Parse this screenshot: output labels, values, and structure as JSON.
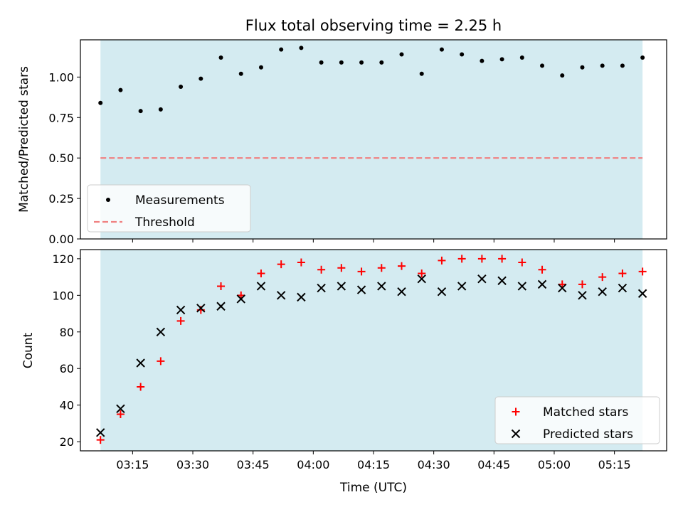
{
  "chart_data": [
    {
      "type": "scatter",
      "title": "Flux total observing time = 2.25 h",
      "xlabel": "",
      "ylabel": "Matched/Predicted stars",
      "x_axis_type": "time",
      "xlim": [
        "03:02",
        "05:28"
      ],
      "ylim": [
        0,
        1.23
      ],
      "yticks": [
        "0.00",
        "0.25",
        "0.50",
        "0.75",
        "1.00"
      ],
      "observing_window": [
        "03:07",
        "05:22"
      ],
      "observing_window_color": "#d4ebf1",
      "legend_position": "lower-left",
      "series": [
        {
          "name": "Measurements",
          "marker": "dot",
          "color": "#000000",
          "x": [
            "03:07",
            "03:12",
            "03:17",
            "03:22",
            "03:27",
            "03:32",
            "03:37",
            "03:42",
            "03:47",
            "03:52",
            "03:57",
            "04:02",
            "04:07",
            "04:12",
            "04:17",
            "04:22",
            "04:27",
            "04:32",
            "04:37",
            "04:42",
            "04:47",
            "04:52",
            "04:57",
            "05:02",
            "05:07",
            "05:12",
            "05:17",
            "05:22"
          ],
          "y": [
            0.84,
            0.92,
            0.79,
            0.8,
            0.94,
            0.99,
            1.12,
            1.02,
            1.06,
            1.17,
            1.18,
            1.09,
            1.09,
            1.09,
            1.09,
            1.14,
            1.02,
            1.17,
            1.14,
            1.1,
            1.11,
            1.12,
            1.07,
            1.01,
            1.06,
            1.07,
            1.07,
            1.12
          ]
        },
        {
          "name": "Threshold",
          "marker": "dashed-line",
          "color": "#f08080",
          "x": [
            "03:07",
            "05:22"
          ],
          "y": [
            0.5,
            0.5
          ]
        }
      ]
    },
    {
      "type": "scatter",
      "title": "",
      "xlabel": "Time (UTC)",
      "ylabel": "Count",
      "x_axis_type": "time",
      "xlim": [
        "03:02",
        "05:28"
      ],
      "xticks": [
        "03:15",
        "03:30",
        "03:45",
        "04:00",
        "04:15",
        "04:30",
        "04:45",
        "05:00",
        "05:15"
      ],
      "ylim": [
        15,
        125
      ],
      "yticks": [
        "20",
        "40",
        "60",
        "80",
        "100",
        "120"
      ],
      "observing_window": [
        "03:07",
        "05:22"
      ],
      "observing_window_color": "#d4ebf1",
      "legend_position": "lower-right",
      "series": [
        {
          "name": "Matched stars",
          "marker": "plus",
          "color": "#ff0000",
          "x": [
            "03:07",
            "03:12",
            "03:17",
            "03:22",
            "03:27",
            "03:32",
            "03:37",
            "03:42",
            "03:47",
            "03:52",
            "03:57",
            "04:02",
            "04:07",
            "04:12",
            "04:17",
            "04:22",
            "04:27",
            "04:32",
            "04:37",
            "04:42",
            "04:47",
            "04:52",
            "04:57",
            "05:02",
            "05:07",
            "05:12",
            "05:17",
            "05:22"
          ],
          "y": [
            21,
            35,
            50,
            64,
            86,
            92,
            105,
            100,
            112,
            117,
            118,
            114,
            115,
            113,
            115,
            116,
            112,
            119,
            120,
            120,
            120,
            118,
            114,
            106,
            106,
            110,
            112,
            113
          ]
        },
        {
          "name": "Predicted stars",
          "marker": "x",
          "color": "#000000",
          "x": [
            "03:07",
            "03:12",
            "03:17",
            "03:22",
            "03:27",
            "03:32",
            "03:37",
            "03:42",
            "03:47",
            "03:52",
            "03:57",
            "04:02",
            "04:07",
            "04:12",
            "04:17",
            "04:22",
            "04:27",
            "04:32",
            "04:37",
            "04:42",
            "04:47",
            "04:52",
            "04:57",
            "05:02",
            "05:07",
            "05:12",
            "05:17",
            "05:22"
          ],
          "y": [
            25,
            38,
            63,
            80,
            92,
            93,
            94,
            98,
            105,
            100,
            99,
            104,
            105,
            103,
            105,
            102,
            109,
            102,
            105,
            109,
            108,
            105,
            106,
            104,
            100,
            102,
            104,
            101
          ]
        }
      ]
    }
  ]
}
